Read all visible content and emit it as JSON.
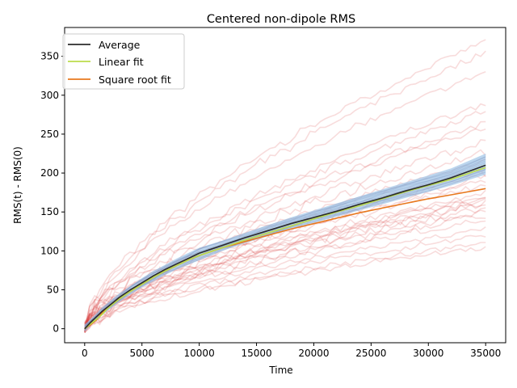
{
  "chart_data": {
    "type": "line",
    "title": "Centered non-dipole RMS",
    "xlabel": "Time",
    "ylabel": "RMS(t) - RMS(0)",
    "xlim": [
      -1750,
      36750
    ],
    "ylim": [
      -18,
      387
    ],
    "xticks": [
      0,
      5000,
      10000,
      15000,
      20000,
      25000,
      30000,
      35000
    ],
    "yticks": [
      0,
      50,
      100,
      150,
      200,
      250,
      300,
      350
    ],
    "xtick_labels": [
      "0",
      "5000",
      "10000",
      "15000",
      "20000",
      "25000",
      "30000",
      "35000"
    ],
    "ytick_labels": [
      "0",
      "50",
      "100",
      "150",
      "200",
      "250",
      "300",
      "350"
    ],
    "grid": false,
    "legend_position": "upper-left",
    "colors": {
      "runs": "#d62728",
      "band": "#a6c8e8",
      "band_runs": "#5a6fa8",
      "average": "#2b2b2b",
      "linear_fit": "#bcdc4c",
      "sqrt_fit": "#e8781e"
    },
    "legend": [
      {
        "label": "Average",
        "color": "#2b2b2b"
      },
      {
        "label": "Linear fit",
        "color": "#bcdc4c"
      },
      {
        "label": "Square root fit",
        "color": "#e8781e"
      }
    ],
    "x": [
      0,
      500,
      1000,
      1500,
      2000,
      3000,
      4000,
      5000,
      6000,
      7000,
      8000,
      9000,
      10000,
      12000,
      14000,
      16000,
      18000,
      20000,
      22000,
      24000,
      26000,
      28000,
      30000,
      32000,
      35000
    ],
    "series": [
      {
        "name": "Average",
        "values": [
          0,
          8,
          15,
          22,
          28,
          40,
          50,
          59,
          68,
          76,
          83,
          90,
          97,
          107,
          117,
          126,
          135,
          143,
          151,
          160,
          168,
          177,
          185,
          194,
          210
        ]
      },
      {
        "name": "Linear fit",
        "values": [
          0,
          6,
          12,
          18,
          26,
          38,
          48,
          57,
          66,
          74,
          81,
          88,
          94,
          104,
          114,
          123,
          132,
          141,
          150,
          158,
          167,
          176,
          184,
          192,
          207
        ]
      },
      {
        "name": "Square root fit",
        "values": [
          0,
          5,
          11,
          20,
          27,
          38,
          48,
          57,
          66,
          74,
          81,
          88,
          94,
          104,
          112,
          120,
          128,
          135,
          142,
          149,
          155,
          161,
          167,
          172,
          180
        ]
      }
    ],
    "band": {
      "upper": [
        5,
        12,
        19,
        27,
        33,
        45,
        55,
        65,
        74,
        82,
        90,
        97,
        104,
        113,
        123,
        133,
        143,
        152,
        161,
        170,
        179,
        188,
        197,
        206,
        225
      ],
      "lower": [
        -4,
        4,
        10,
        17,
        23,
        34,
        44,
        53,
        61,
        69,
        76,
        82,
        88,
        100,
        110,
        119,
        128,
        136,
        144,
        152,
        160,
        168,
        176,
        184,
        198
      ]
    },
    "runs_endpoints": [
      370,
      355,
      330,
      290,
      280,
      265,
      258,
      240,
      228,
      215,
      205,
      200,
      195,
      190,
      185,
      175,
      170,
      168,
      165,
      162,
      160,
      155,
      150,
      145,
      140,
      128,
      120,
      110,
      105
    ]
  }
}
